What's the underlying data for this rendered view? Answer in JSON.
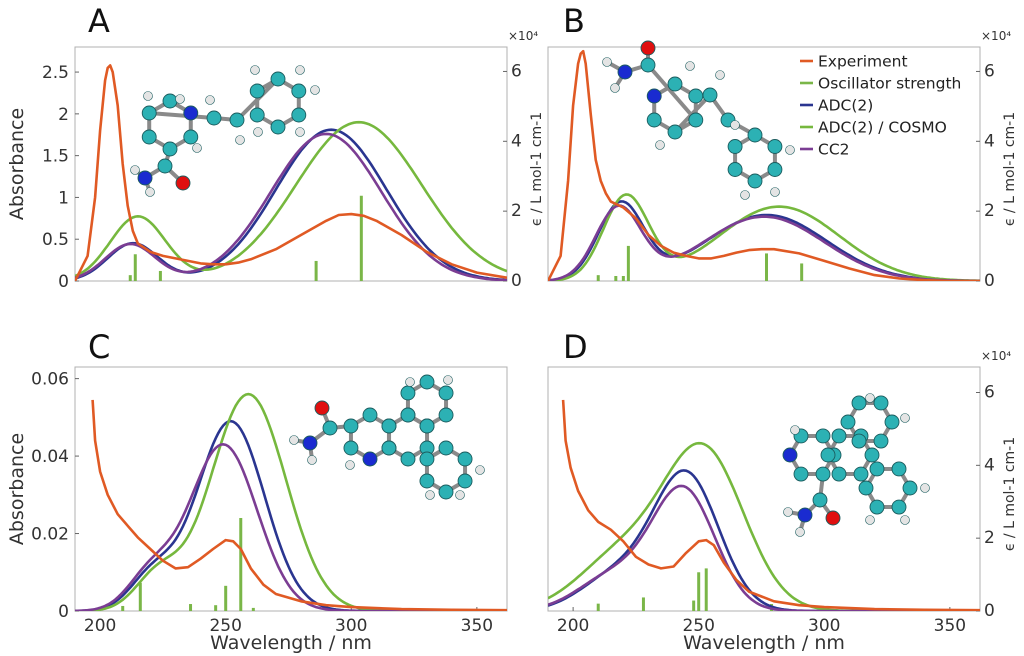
{
  "colors": {
    "experiment": "#e05a24",
    "oscillator": "#7ab648",
    "adc2": "#2a3590",
    "adc2cosmo": "#76b83e",
    "cc2": "#7b3d93",
    "atomC": "#2cb1b4",
    "atomN": "#1a2bd0",
    "atomO": "#e01010",
    "atomH": "#e4e4e4"
  },
  "legend": {
    "items": [
      {
        "key": "experiment",
        "label": "Experiment"
      },
      {
        "key": "oscillator",
        "label": "Oscillator strength"
      },
      {
        "key": "adc2",
        "label": "ADC(2)"
      },
      {
        "key": "adc2cosmo",
        "label": "ADC(2) / COSMO"
      },
      {
        "key": "cc2",
        "label": "CC2"
      }
    ]
  },
  "chart_data": [
    {
      "type": "line",
      "panel": "A",
      "xlabel": "",
      "ylabel": "Absorbance",
      "ylabel_right": "ϵ / L mol-1 cm-1",
      "right_exponent": "×10⁴",
      "xlim": [
        190,
        362
      ],
      "ylim": [
        0,
        2.8
      ],
      "ylim_right": [
        0,
        6.7
      ],
      "xticks": [],
      "yticks": [
        0,
        0.5,
        1,
        1.5,
        2,
        2.5
      ],
      "ytick_labels": [
        "0",
        "0.5",
        "1",
        "1.5",
        "2",
        "2.5"
      ],
      "yticks_right": [
        0,
        2,
        4,
        6
      ],
      "ytick_labels_right": [
        "0",
        "2",
        "4",
        "6"
      ],
      "experiment": {
        "x": [
          190,
          195,
          198,
          200,
          202,
          203,
          204,
          205,
          207,
          209,
          211,
          213,
          215,
          220,
          225,
          230,
          235,
          240,
          245,
          250,
          255,
          260,
          270,
          280,
          290,
          295,
          300,
          305,
          310,
          320,
          330,
          340,
          350,
          362
        ],
        "y": [
          0,
          0.3,
          1.0,
          1.8,
          2.4,
          2.55,
          2.58,
          2.5,
          2.1,
          1.4,
          0.9,
          0.6,
          0.45,
          0.35,
          0.3,
          0.27,
          0.24,
          0.21,
          0.2,
          0.2,
          0.22,
          0.26,
          0.38,
          0.55,
          0.72,
          0.79,
          0.8,
          0.78,
          0.72,
          0.55,
          0.35,
          0.2,
          0.1,
          0.04
        ]
      },
      "bands": [
        {
          "series": "adc2",
          "peaks": [
            [
              213,
              0.45,
              10
            ],
            [
              292,
              1.81,
              22
            ]
          ]
        },
        {
          "series": "adc2cosmo",
          "peaks": [
            [
              215,
              0.77,
              11
            ],
            [
              303,
              1.9,
              25
            ]
          ]
        },
        {
          "series": "cc2",
          "peaks": [
            [
              212,
              0.44,
              10
            ],
            [
              290,
              1.76,
              22
            ]
          ]
        }
      ],
      "sticks": {
        "x": [
          212,
          214,
          224,
          286,
          304
        ],
        "f": [
          0.07,
          0.32,
          0.12,
          0.24,
          1.02
        ]
      }
    },
    {
      "type": "line",
      "panel": "B",
      "xlabel": "",
      "ylabel": "",
      "ylabel_right": "ϵ / L mol-1 cm-1",
      "right_exponent": "×10⁴",
      "xlim": [
        190,
        362
      ],
      "ylim": [
        0,
        2.8
      ],
      "ylim_right": [
        0,
        6.7
      ],
      "xticks": [],
      "yticks": [],
      "ytick_labels": [],
      "yticks_right": [
        0,
        2,
        4,
        6
      ],
      "ytick_labels_right": [
        "0",
        "2",
        "4",
        "6"
      ],
      "experiment": {
        "x": [
          190,
          195,
          198,
          200,
          202,
          203,
          204,
          205,
          207,
          209,
          211,
          213,
          215,
          220,
          225,
          230,
          235,
          240,
          245,
          250,
          255,
          260,
          265,
          270,
          275,
          280,
          290,
          300,
          310,
          320,
          330,
          340,
          350,
          362
        ],
        "y": [
          0,
          0.3,
          1.2,
          2.1,
          2.6,
          2.72,
          2.75,
          2.6,
          2.0,
          1.45,
          1.2,
          1.05,
          0.95,
          0.88,
          0.75,
          0.55,
          0.42,
          0.34,
          0.3,
          0.27,
          0.27,
          0.3,
          0.34,
          0.37,
          0.38,
          0.38,
          0.33,
          0.24,
          0.15,
          0.07,
          0.03,
          0.01,
          0.0,
          0.0
        ]
      },
      "bands": [
        {
          "series": "adc2",
          "peaks": [
            [
              219,
              0.91,
              9
            ],
            [
              277,
              0.79,
              24
            ]
          ]
        },
        {
          "series": "adc2cosmo",
          "peaks": [
            [
              221,
              1.0,
              9
            ],
            [
              282,
              0.89,
              24
            ]
          ]
        },
        {
          "series": "cc2",
          "peaks": [
            [
              218,
              0.86,
              9
            ],
            [
              276,
              0.77,
              24
            ]
          ]
        }
      ],
      "sticks": {
        "x": [
          210,
          217,
          220,
          222,
          277,
          291
        ],
        "f": [
          0.07,
          0.06,
          0.06,
          0.42,
          0.33,
          0.21
        ]
      }
    },
    {
      "type": "line",
      "panel": "C",
      "xlabel": "Wavelength / nm",
      "ylabel": "Absorbance",
      "ylabel_right": "",
      "right_exponent": "",
      "xlim": [
        190,
        362
      ],
      "ylim": [
        0,
        0.063
      ],
      "ylim_right": [
        0,
        6.7
      ],
      "xticks": [
        200,
        250,
        300,
        350
      ],
      "yticks": [
        0,
        0.02,
        0.04,
        0.06
      ],
      "ytick_labels": [
        "0",
        "0.02",
        "0.04",
        "0.06"
      ],
      "yticks_right": [],
      "ytick_labels_right": [],
      "experiment": {
        "x": [
          197,
          198,
          200,
          203,
          207,
          211,
          215,
          220,
          225,
          230,
          235,
          240,
          245,
          250,
          253,
          256,
          260,
          265,
          270,
          280,
          290,
          300,
          320,
          340,
          362
        ],
        "y": [
          0.0545,
          0.044,
          0.036,
          0.03,
          0.025,
          0.022,
          0.019,
          0.016,
          0.013,
          0.011,
          0.0113,
          0.0135,
          0.016,
          0.0183,
          0.018,
          0.016,
          0.011,
          0.0068,
          0.0044,
          0.0025,
          0.0015,
          0.001,
          0.0005,
          0.0003,
          0.0002
        ]
      },
      "bands": [
        {
          "series": "adc2",
          "peaks": [
            [
              221,
              0.009,
              9
            ],
            [
              252,
              0.049,
              13.5
            ]
          ]
        },
        {
          "series": "adc2cosmo",
          "peaks": [
            [
              223,
              0.009,
              9
            ],
            [
              259,
              0.056,
              15
            ]
          ]
        },
        {
          "series": "cc2",
          "peaks": [
            [
              220,
              0.009,
              9
            ],
            [
              249,
              0.043,
              13.5
            ]
          ]
        }
      ],
      "sticks": {
        "x": [
          209,
          216,
          236,
          246,
          250,
          256,
          261
        ],
        "f": [
          0.0013,
          0.0073,
          0.0018,
          0.0015,
          0.0065,
          0.024,
          0.0008
        ]
      }
    },
    {
      "type": "line",
      "panel": "D",
      "xlabel": "Wavelength / nm",
      "ylabel": "",
      "ylabel_right": "ϵ / L mol-1 cm-1",
      "right_exponent": "×10⁴",
      "xlim": [
        190,
        362
      ],
      "ylim": [
        0,
        0.063
      ],
      "ylim_right": [
        0,
        6.7
      ],
      "xticks": [
        200,
        250,
        300,
        350
      ],
      "yticks": [],
      "ytick_labels": [],
      "yticks_right": [
        0,
        2,
        4,
        6
      ],
      "ytick_labels_right": [
        "0",
        "2",
        "4",
        "6"
      ],
      "experiment": {
        "x": [
          196,
          197,
          199,
          202,
          206,
          210,
          215,
          220,
          225,
          230,
          235,
          240,
          245,
          250,
          253,
          256,
          260,
          265,
          270,
          280,
          290,
          300,
          320,
          340,
          362
        ],
        "y": [
          0.0545,
          0.044,
          0.037,
          0.031,
          0.026,
          0.023,
          0.021,
          0.018,
          0.014,
          0.012,
          0.011,
          0.0115,
          0.015,
          0.018,
          0.0183,
          0.017,
          0.0125,
          0.008,
          0.005,
          0.0025,
          0.0015,
          0.001,
          0.0005,
          0.0003,
          0.0002
        ]
      },
      "bands": [
        {
          "series": "adc2",
          "peaks": [
            [
              217,
              0.009,
              14
            ],
            [
              245,
              0.035,
              13
            ]
          ]
        },
        {
          "series": "adc2cosmo",
          "peaks": [
            [
              219,
              0.014,
              17
            ],
            [
              252,
              0.041,
              16
            ]
          ]
        },
        {
          "series": "cc2",
          "peaks": [
            [
              216,
              0.009,
              14
            ],
            [
              244,
              0.031,
              12.5
            ]
          ]
        }
      ],
      "sticks": {
        "x": [
          210,
          228,
          248,
          250,
          253,
          279
        ],
        "f": [
          0.0019,
          0.0035,
          0.0027,
          0.01,
          0.011,
          0.0018
        ]
      }
    }
  ]
}
